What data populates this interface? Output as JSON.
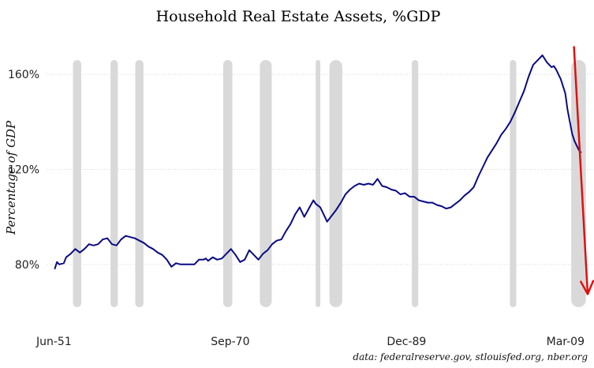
{
  "chart_data": {
    "type": "line",
    "title": "Household Real Estate Assets, %GDP",
    "xlabel": "",
    "ylabel": "Percentage of GDP",
    "source": "data: federalreserve.gov, stlouisfed.org, nber.org",
    "x_ticks": [
      {
        "label": "Jun-51",
        "value": 1951.42
      },
      {
        "label": "Sep-70",
        "value": 1970.67
      },
      {
        "label": "Dec-89",
        "value": 1989.92
      },
      {
        "label": "Mar-09",
        "value": 2009.17
      }
    ],
    "y_ticks": [
      {
        "label": "80%",
        "value": 80
      },
      {
        "label": "120%",
        "value": 120
      },
      {
        "label": "160%",
        "value": 160
      }
    ],
    "xlim": [
      1950.7,
      2010.3
    ],
    "ylim": [
      60,
      173
    ],
    "grid": true,
    "recessions": [
      [
        1953.5,
        1954.4
      ],
      [
        1957.6,
        1958.4
      ],
      [
        1960.3,
        1961.2
      ],
      [
        1969.9,
        1970.9
      ],
      [
        1973.9,
        1975.2
      ],
      [
        1980.0,
        1980.5
      ],
      [
        1981.5,
        1982.9
      ],
      [
        1990.5,
        1991.2
      ],
      [
        2001.2,
        2001.9
      ],
      [
        2007.9,
        2009.5
      ]
    ],
    "series": [
      {
        "name": "Household Real Estate Assets, %GDP",
        "color": "#0a0a84",
        "x": [
          1951.5,
          1951.75,
          1952.0,
          1952.5,
          1952.75,
          1953.25,
          1953.75,
          1954.25,
          1954.75,
          1955.0,
          1955.25,
          1955.75,
          1956.25,
          1956.75,
          1957.25,
          1957.75,
          1958.25,
          1958.75,
          1959.25,
          1959.75,
          1960.25,
          1960.75,
          1961.25,
          1961.75,
          1962.25,
          1962.75,
          1963.25,
          1963.75,
          1964.25,
          1964.75,
          1965.25,
          1965.75,
          1966.25,
          1966.75,
          1967.25,
          1967.75,
          1968.0,
          1968.25,
          1968.75,
          1969.25,
          1969.75,
          1970.25,
          1970.75,
          1971.25,
          1971.75,
          1972.25,
          1972.75,
          1973.25,
          1973.75,
          1974.25,
          1974.75,
          1975.25,
          1975.75,
          1976.25,
          1976.75,
          1977.25,
          1977.75,
          1978.25,
          1978.75,
          1979.25,
          1979.75,
          1980.0,
          1980.5,
          1980.75,
          1981.25,
          1981.75,
          1982.25,
          1982.75,
          1983.25,
          1983.75,
          1984.25,
          1984.75,
          1985.25,
          1985.75,
          1986.25,
          1986.75,
          1987.25,
          1987.75,
          1988.25,
          1988.75,
          1989.25,
          1989.75,
          1990.25,
          1990.75,
          1991.25,
          1991.75,
          1992.25,
          1992.75,
          1993.25,
          1993.75,
          1994.25,
          1994.75,
          1995.25,
          1995.75,
          1996.25,
          1996.75,
          1997.25,
          1997.75,
          1998.25,
          1998.75,
          1999.25,
          1999.75,
          2000.25,
          2000.75,
          2001.25,
          2001.75,
          2002.25,
          2002.75,
          2003.25,
          2003.75,
          2004.25,
          2004.75,
          2005.25,
          2005.75,
          2006.0,
          2006.25,
          2006.75,
          2007.25,
          2007.5,
          2007.75,
          2008.0,
          2008.25,
          2008.75,
          2009.0
        ],
        "values": [
          78.0,
          81.0,
          80.0,
          80.5,
          83.0,
          84.5,
          86.5,
          85.0,
          86.5,
          87.5,
          88.5,
          88.0,
          88.5,
          90.5,
          91.0,
          88.5,
          88.0,
          90.5,
          92.0,
          91.5,
          91.0,
          90.0,
          89.0,
          87.5,
          86.5,
          85.0,
          84.0,
          82.0,
          79.0,
          80.5,
          80.0,
          80.0,
          80.0,
          80.0,
          82.0,
          82.0,
          82.5,
          81.5,
          83.0,
          82.0,
          82.5,
          84.5,
          86.5,
          84.0,
          81.0,
          82.0,
          86.0,
          84.0,
          82.0,
          84.5,
          86.0,
          88.5,
          90.0,
          90.5,
          94.0,
          97.0,
          101.0,
          104.0,
          100.0,
          103.5,
          107.0,
          105.5,
          104.0,
          102.0,
          98.0,
          100.5,
          103.0,
          106.0,
          109.5,
          111.5,
          113.0,
          114.0,
          113.5,
          114.0,
          113.5,
          116.0,
          113.0,
          112.5,
          111.5,
          111.0,
          109.5,
          110.0,
          108.5,
          108.5,
          107.0,
          106.5,
          106.0,
          106.0,
          105.0,
          104.5,
          103.5,
          104.0,
          105.5,
          107.0,
          109.0,
          110.5,
          112.5,
          117.0,
          121.0,
          125.0,
          128.0,
          131.0,
          134.5,
          137.0,
          140.0,
          144.0,
          148.5,
          153.0,
          159.0,
          164.0,
          166.0,
          168.0,
          165.0,
          163.0,
          163.5,
          162.0,
          158.0,
          152.0,
          145.0,
          140.0,
          135.0,
          132.0,
          128.0,
          127.0
        ]
      }
    ],
    "arrow": {
      "from": [
        2008.2,
        171.5
      ],
      "to": [
        2010.4,
        67.5
      ]
    }
  }
}
